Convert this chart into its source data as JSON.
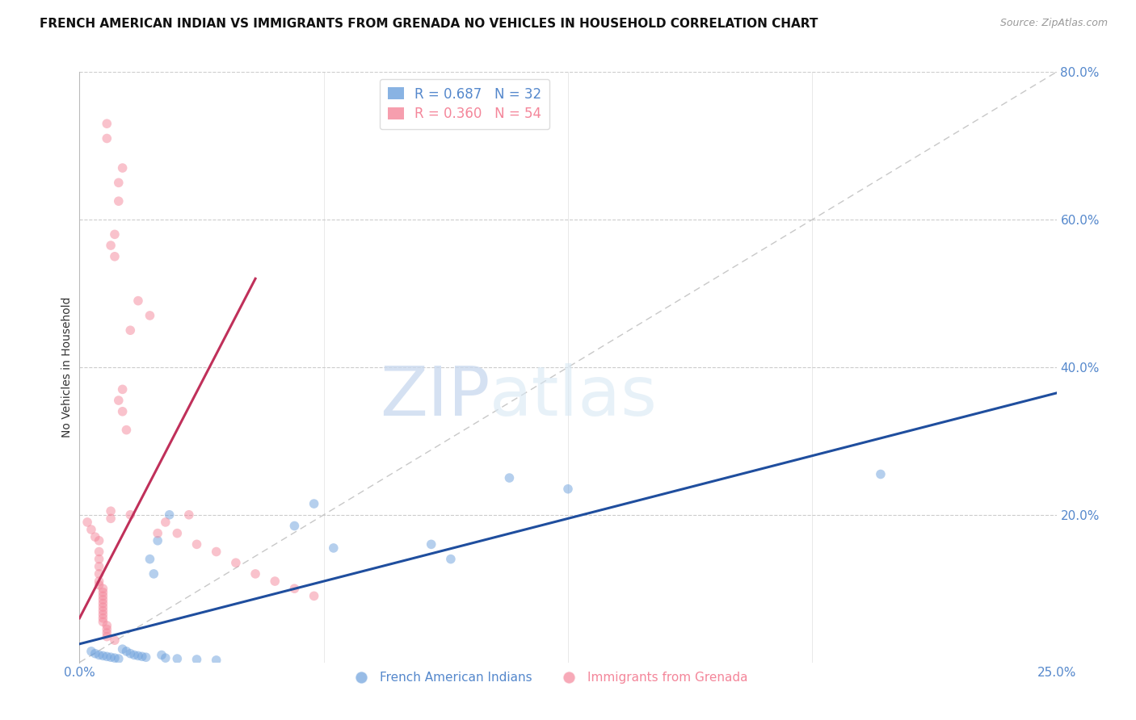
{
  "title": "FRENCH AMERICAN INDIAN VS IMMIGRANTS FROM GRENADA NO VEHICLES IN HOUSEHOLD CORRELATION CHART",
  "source": "Source: ZipAtlas.com",
  "ylabel": "No Vehicles in Household",
  "watermark_zip": "ZIP",
  "watermark_atlas": "atlas",
  "legend_lines": [
    {
      "r": "0.687",
      "n": "32",
      "color": "#6ca0dc"
    },
    {
      "r": "0.360",
      "n": "54",
      "color": "#f4869a"
    }
  ],
  "legend_names": [
    "French American Indians",
    "Immigrants from Grenada"
  ],
  "blue_scatter": [
    [
      0.3,
      1.5
    ],
    [
      0.4,
      1.2
    ],
    [
      0.5,
      1.0
    ],
    [
      0.6,
      0.9
    ],
    [
      0.7,
      0.8
    ],
    [
      0.8,
      0.7
    ],
    [
      0.9,
      0.6
    ],
    [
      1.0,
      0.5
    ],
    [
      1.1,
      1.8
    ],
    [
      1.2,
      1.5
    ],
    [
      1.3,
      1.2
    ],
    [
      1.4,
      1.0
    ],
    [
      1.5,
      0.9
    ],
    [
      1.6,
      0.8
    ],
    [
      1.7,
      0.7
    ],
    [
      1.8,
      14.0
    ],
    [
      1.9,
      12.0
    ],
    [
      2.0,
      16.5
    ],
    [
      2.1,
      1.0
    ],
    [
      2.2,
      0.6
    ],
    [
      2.3,
      20.0
    ],
    [
      2.5,
      0.5
    ],
    [
      3.0,
      0.4
    ],
    [
      3.5,
      0.3
    ],
    [
      5.5,
      18.5
    ],
    [
      6.0,
      21.5
    ],
    [
      6.5,
      15.5
    ],
    [
      9.0,
      16.0
    ],
    [
      9.5,
      14.0
    ],
    [
      11.0,
      25.0
    ],
    [
      12.5,
      23.5
    ],
    [
      20.5,
      25.5
    ]
  ],
  "pink_scatter": [
    [
      0.2,
      19.0
    ],
    [
      0.3,
      18.0
    ],
    [
      0.4,
      17.0
    ],
    [
      0.5,
      16.5
    ],
    [
      0.5,
      15.0
    ],
    [
      0.5,
      14.0
    ],
    [
      0.5,
      13.0
    ],
    [
      0.5,
      12.0
    ],
    [
      0.5,
      11.0
    ],
    [
      0.5,
      10.5
    ],
    [
      0.6,
      10.0
    ],
    [
      0.6,
      9.5
    ],
    [
      0.6,
      9.0
    ],
    [
      0.6,
      8.5
    ],
    [
      0.6,
      8.0
    ],
    [
      0.6,
      7.5
    ],
    [
      0.6,
      7.0
    ],
    [
      0.6,
      6.5
    ],
    [
      0.6,
      6.0
    ],
    [
      0.6,
      5.5
    ],
    [
      0.7,
      5.0
    ],
    [
      0.7,
      4.5
    ],
    [
      0.7,
      4.0
    ],
    [
      0.7,
      3.5
    ],
    [
      0.8,
      20.5
    ],
    [
      0.8,
      19.5
    ],
    [
      0.9,
      3.0
    ],
    [
      1.0,
      35.5
    ],
    [
      1.1,
      37.0
    ],
    [
      1.1,
      34.0
    ],
    [
      1.2,
      31.5
    ],
    [
      1.3,
      20.0
    ],
    [
      1.5,
      49.0
    ],
    [
      1.8,
      47.0
    ],
    [
      2.0,
      17.5
    ],
    [
      2.2,
      19.0
    ],
    [
      2.5,
      17.5
    ],
    [
      3.0,
      16.0
    ],
    [
      3.5,
      15.0
    ],
    [
      4.0,
      13.5
    ],
    [
      4.5,
      12.0
    ],
    [
      5.0,
      11.0
    ],
    [
      5.5,
      10.0
    ],
    [
      6.0,
      9.0
    ],
    [
      1.3,
      45.0
    ],
    [
      2.8,
      20.0
    ],
    [
      0.9,
      55.0
    ],
    [
      0.9,
      58.0
    ],
    [
      0.8,
      56.5
    ],
    [
      1.0,
      62.5
    ],
    [
      1.0,
      65.0
    ],
    [
      1.1,
      67.0
    ],
    [
      0.7,
      71.0
    ],
    [
      0.7,
      73.0
    ]
  ],
  "blue_line": {
    "x": [
      0.0,
      25.0
    ],
    "y": [
      2.5,
      36.5
    ]
  },
  "pink_line": {
    "x": [
      0.0,
      4.5
    ],
    "y": [
      6.0,
      52.0
    ]
  },
  "diagonal_line": {
    "x": [
      0.0,
      25.0
    ],
    "y": [
      0.0,
      80.0
    ]
  },
  "xlim": [
    0.0,
    25.0
  ],
  "ylim": [
    0.0,
    80.0
  ],
  "xticks": [
    0.0,
    6.25,
    12.5,
    18.75,
    25.0
  ],
  "xtick_labels_show": [
    "0.0%",
    "",
    "",
    "",
    "25.0%"
  ],
  "yticks_right": [
    20.0,
    40.0,
    60.0,
    80.0
  ],
  "ytick_labels_right": [
    "20.0%",
    "40.0%",
    "60.0%",
    "80.0%"
  ],
  "background_color": "#ffffff",
  "scatter_alpha": 0.5,
  "scatter_size": 70,
  "blue_color": "#6ca0dc",
  "pink_color": "#f4869a",
  "line_blue_color": "#1f4e9e",
  "line_pink_color": "#c0305a",
  "diag_color": "#c8c8c8",
  "grid_color": "#cccccc",
  "axis_color": "#5588cc",
  "tick_fontsize": 11,
  "ylabel_fontsize": 10,
  "title_fontsize": 11,
  "source_fontsize": 9,
  "legend_fontsize": 12
}
